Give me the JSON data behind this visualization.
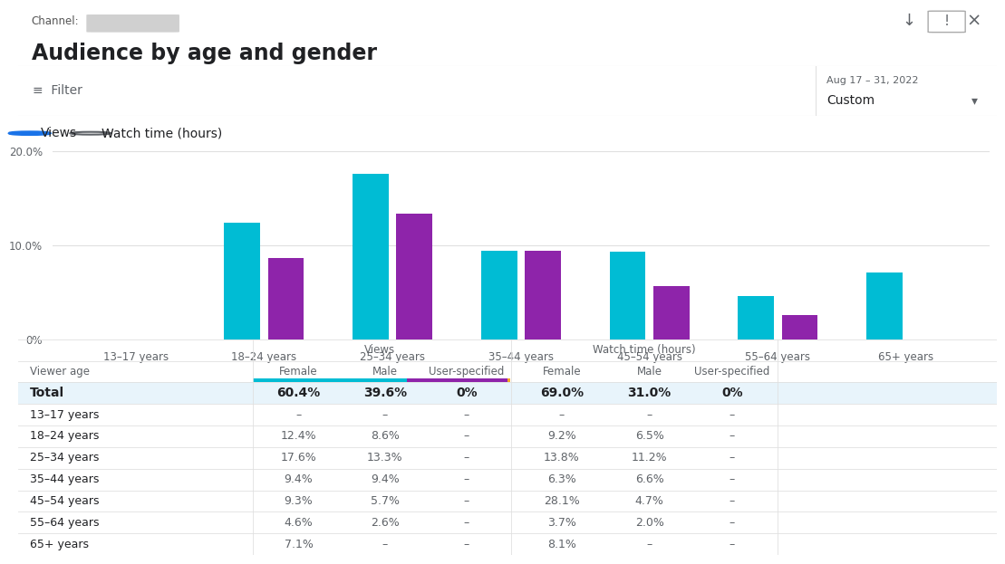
{
  "title": "Audience by age and gender",
  "channel_label": "Channel:",
  "date_range": "Aug 17 – 31, 2022",
  "date_sub": "Custom",
  "radio_options": [
    "Views",
    "Watch time (hours)"
  ],
  "age_groups": [
    "13–17 years",
    "18–24 years",
    "25–34 years",
    "35–44 years",
    "45–54 years",
    "55–64 years",
    "65+ years"
  ],
  "female_values": [
    0,
    12.4,
    17.6,
    9.4,
    9.3,
    4.6,
    7.1
  ],
  "male_values": [
    0,
    8.6,
    13.3,
    9.4,
    5.7,
    2.6,
    0
  ],
  "female_color": "#00BCD4",
  "male_color": "#8E24AA",
  "user_color": "#F9A825",
  "ylim": [
    0,
    20
  ],
  "ytick_labels": [
    "0%",
    "10.0%",
    "20.0%"
  ],
  "bg_color": "#ffffff",
  "grid_color": "#e0e0e0",
  "table_views_header": "Views",
  "table_watch_header": "Watch time (hours)",
  "table_col_labels": [
    "Female",
    "Male",
    "User-specified"
  ],
  "table_row_labels": [
    "Viewer age",
    "Total",
    "13–17 years",
    "18–24 years",
    "25–34 years",
    "35–44 years",
    "45–54 years",
    "55–64 years",
    "65+ years"
  ],
  "table_views_female": [
    "",
    "60.4%",
    "–",
    "12.4%",
    "17.6%",
    "9.4%",
    "9.3%",
    "4.6%",
    "7.1%"
  ],
  "table_views_male": [
    "",
    "39.6%",
    "–",
    "8.6%",
    "13.3%",
    "9.4%",
    "5.7%",
    "2.6%",
    "–"
  ],
  "table_views_user": [
    "",
    "0%",
    "–",
    "–",
    "–",
    "–",
    "–",
    "–",
    "–"
  ],
  "table_watch_female": [
    "",
    "69.0%",
    "–",
    "9.2%",
    "13.8%",
    "6.3%",
    "28.1%",
    "3.7%",
    "8.1%"
  ],
  "table_watch_male": [
    "",
    "31.0%",
    "–",
    "6.5%",
    "11.2%",
    "6.6%",
    "4.7%",
    "2.0%",
    "–"
  ],
  "table_watch_user": [
    "",
    "0%",
    "–",
    "–",
    "–",
    "–",
    "–",
    "–",
    "–"
  ],
  "filter_text": "Filter",
  "total_bg": "#e8f4fb",
  "line_color": "#e0e0e0",
  "text_dark": "#202124",
  "text_gray": "#5f6368"
}
